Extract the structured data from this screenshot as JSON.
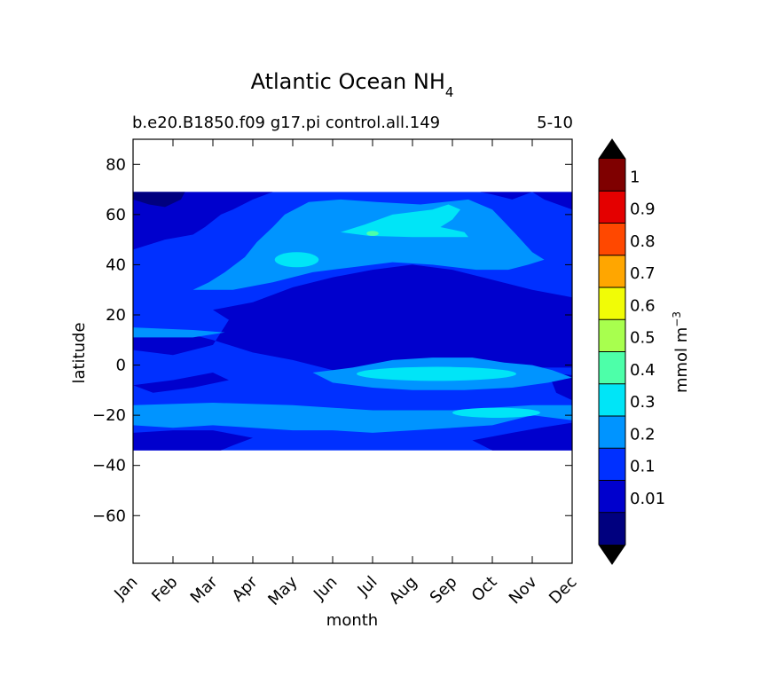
{
  "chart_data": {
    "type": "heatmap",
    "title": "Atlantic Ocean NH",
    "title_subscript": "4",
    "subtitle_left": "b.e20.B1850.f09 g17.pi control.all.149",
    "subtitle_right": "5-10",
    "xlabel": "month",
    "ylabel": "latitude",
    "x": [
      "Jan",
      "Feb",
      "Mar",
      "Apr",
      "May",
      "Jun",
      "Jul",
      "Aug",
      "Sep",
      "Oct",
      "Nov",
      "Dec"
    ],
    "xlim": [
      0,
      11
    ],
    "y_ticks": [
      80,
      60,
      40,
      20,
      0,
      -20,
      -40,
      -60
    ],
    "y_tick_labels": [
      "80",
      "60",
      "40",
      "20",
      "0",
      "−20",
      "−40",
      "−60"
    ],
    "ylim": [
      -79,
      90
    ],
    "data_lat_range": [
      -34,
      69
    ],
    "colorbar": {
      "label": "mmol m",
      "label_superscript": "−3",
      "levels": [
        0.01,
        0.1,
        0.2,
        0.3,
        0.4,
        0.5,
        0.6,
        0.7,
        0.8,
        0.9,
        1
      ],
      "tick_labels": [
        "0.01",
        "0.1",
        "0.2",
        "0.3",
        "0.4",
        "0.5",
        "0.6",
        "0.7",
        "0.8",
        "0.9",
        "1"
      ],
      "colors": [
        "#00007f",
        "#0000cd",
        "#0030ff",
        "#0094ff",
        "#00e5f7",
        "#4dffa9",
        "#a8ff4e",
        "#f1fc06",
        "#ffa600",
        "#ff4800",
        "#e40000",
        "#7f0000"
      ],
      "under_color": "#000000",
      "over_color": "#000000",
      "extend": "both"
    },
    "regions": [
      {
        "level_index": 2,
        "shape": "rect",
        "x0": 0,
        "x1": 11,
        "y0": -34,
        "y1": 69
      },
      {
        "level_index": 1,
        "shape": "poly",
        "points": [
          [
            0,
            69
          ],
          [
            11,
            69
          ],
          [
            11,
            62
          ],
          [
            10.3,
            66
          ],
          [
            10,
            69
          ],
          [
            9.5,
            66
          ],
          [
            9,
            68
          ],
          [
            8.7,
            69
          ],
          [
            7.5,
            69
          ],
          [
            6.5,
            69
          ],
          [
            5.5,
            69
          ],
          [
            4.5,
            69
          ],
          [
            3.5,
            69
          ],
          [
            3,
            66
          ],
          [
            2.5,
            62
          ],
          [
            2.2,
            60
          ],
          [
            1.8,
            55
          ],
          [
            1.5,
            52
          ],
          [
            0.8,
            50
          ],
          [
            0,
            46
          ]
        ]
      },
      {
        "level_index": 0,
        "shape": "poly",
        "points": [
          [
            0,
            69
          ],
          [
            1.3,
            69
          ],
          [
            1.2,
            66
          ],
          [
            0.8,
            63
          ],
          [
            0.4,
            64
          ],
          [
            0,
            66
          ]
        ]
      },
      {
        "level_index": 3,
        "shape": "poly",
        "points": [
          [
            1.5,
            30
          ],
          [
            1.9,
            33
          ],
          [
            2.3,
            37
          ],
          [
            2.8,
            43
          ],
          [
            3.1,
            49
          ],
          [
            3.5,
            55
          ],
          [
            3.8,
            60
          ],
          [
            4.4,
            65
          ],
          [
            5.2,
            66
          ],
          [
            6.1,
            65
          ],
          [
            7.2,
            64
          ],
          [
            8.4,
            66
          ],
          [
            9,
            62
          ],
          [
            9.3,
            57
          ],
          [
            9.6,
            52
          ],
          [
            10,
            45
          ],
          [
            10.3,
            42
          ],
          [
            9.9,
            40
          ],
          [
            9.4,
            38
          ],
          [
            8.6,
            38
          ],
          [
            7.5,
            40
          ],
          [
            6.5,
            41
          ],
          [
            5.5,
            39
          ],
          [
            4.5,
            37
          ],
          [
            3.5,
            33
          ],
          [
            2.5,
            30
          ]
        ]
      },
      {
        "level_index": 1,
        "shape": "poly",
        "points": [
          [
            2,
            22
          ],
          [
            3,
            25
          ],
          [
            4,
            31
          ],
          [
            5,
            35
          ],
          [
            6,
            38
          ],
          [
            7,
            40
          ],
          [
            8,
            38
          ],
          [
            9,
            34
          ],
          [
            10,
            30
          ],
          [
            11,
            27
          ],
          [
            11,
            -1
          ],
          [
            10,
            -1
          ],
          [
            9,
            1
          ],
          [
            8,
            2
          ],
          [
            7,
            1
          ],
          [
            6,
            -4
          ],
          [
            5,
            -2
          ],
          [
            4,
            2
          ],
          [
            3,
            5
          ],
          [
            2,
            10
          ],
          [
            1,
            14
          ],
          [
            0,
            12
          ],
          [
            0,
            6
          ],
          [
            1,
            4
          ],
          [
            2,
            8
          ],
          [
            2.4,
            18
          ]
        ]
      },
      {
        "level_index": 1,
        "shape": "poly",
        "points": [
          [
            0,
            -8
          ],
          [
            1,
            -6
          ],
          [
            2,
            -3
          ],
          [
            2.4,
            -6
          ],
          [
            1.5,
            -9
          ],
          [
            0.5,
            -11
          ]
        ]
      },
      {
        "level_index": 1,
        "shape": "poly",
        "points": [
          [
            10.4,
            -3
          ],
          [
            11,
            -4
          ],
          [
            11,
            -14
          ],
          [
            10.6,
            -11
          ]
        ]
      },
      {
        "level_index": 3,
        "shape": "poly",
        "points": [
          [
            0,
            15
          ],
          [
            1.5,
            14
          ],
          [
            2.3,
            13
          ],
          [
            1.5,
            11
          ],
          [
            0,
            11
          ]
        ]
      },
      {
        "level_index": 3,
        "shape": "poly",
        "points": [
          [
            4.5,
            -3
          ],
          [
            5.5,
            -1
          ],
          [
            6.5,
            2
          ],
          [
            7.5,
            3
          ],
          [
            8.5,
            3
          ],
          [
            9.3,
            1
          ],
          [
            10,
            0
          ],
          [
            10.5,
            -2
          ],
          [
            11,
            -5
          ],
          [
            10.4,
            -7
          ],
          [
            9.5,
            -9
          ],
          [
            8.3,
            -10
          ],
          [
            7,
            -10
          ],
          [
            6,
            -9
          ],
          [
            5,
            -7
          ]
        ]
      },
      {
        "level_index": 3,
        "shape": "poly",
        "points": [
          [
            0,
            -16
          ],
          [
            2,
            -15
          ],
          [
            4,
            -16
          ],
          [
            6,
            -18
          ],
          [
            8,
            -18
          ],
          [
            9,
            -17
          ],
          [
            10,
            -16
          ],
          [
            11,
            -16
          ],
          [
            11,
            -22
          ],
          [
            10,
            -20
          ],
          [
            9,
            -24
          ],
          [
            8,
            -25
          ],
          [
            7,
            -26
          ],
          [
            6,
            -27
          ],
          [
            5,
            -26
          ],
          [
            4,
            -26
          ],
          [
            3,
            -25
          ],
          [
            2,
            -24
          ],
          [
            1,
            -25
          ],
          [
            0,
            -24
          ]
        ]
      },
      {
        "level_index": 1,
        "shape": "poly",
        "points": [
          [
            0,
            -27
          ],
          [
            1,
            -26
          ],
          [
            2,
            -26
          ],
          [
            3,
            -29
          ],
          [
            2.5,
            -32
          ],
          [
            2.2,
            -34
          ],
          [
            0,
            -34
          ]
        ]
      },
      {
        "level_index": 1,
        "shape": "poly",
        "points": [
          [
            8.5,
            -30
          ],
          [
            9.5,
            -27
          ],
          [
            10.2,
            -25
          ],
          [
            11,
            -23
          ],
          [
            11,
            -34
          ],
          [
            9,
            -34
          ]
        ]
      },
      {
        "level_index": 4,
        "shape": "ellipse",
        "cx": 4.1,
        "cy": 42,
        "rx": 0.55,
        "ry": 3
      },
      {
        "level_index": 4,
        "shape": "poly",
        "points": [
          [
            5.2,
            53
          ],
          [
            5.8,
            56
          ],
          [
            6.5,
            60
          ],
          [
            7.5,
            62
          ],
          [
            7.9,
            64
          ],
          [
            8.2,
            62
          ],
          [
            8,
            58
          ],
          [
            7.7,
            55
          ],
          [
            8.3,
            53
          ],
          [
            8.4,
            51
          ],
          [
            7,
            51
          ],
          [
            5.9,
            51.5
          ]
        ]
      },
      {
        "level_index": 5,
        "shape": "ellipse",
        "cx": 6.0,
        "cy": 52.5,
        "rx": 0.15,
        "ry": 1
      },
      {
        "level_index": 4,
        "shape": "ellipse",
        "cx": 7.6,
        "cy": -3.5,
        "rx": 2.0,
        "ry": 2.8
      },
      {
        "level_index": 4,
        "shape": "ellipse",
        "cx": 9.1,
        "cy": -19,
        "rx": 1.1,
        "ry": 2
      }
    ]
  }
}
